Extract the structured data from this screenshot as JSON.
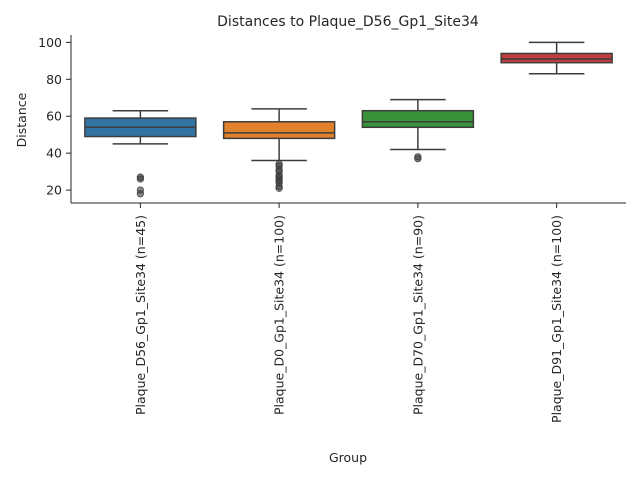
{
  "chart_data": {
    "type": "box",
    "title": "Distances to Plaque_D56_Gp1_Site34",
    "xlabel": "Group",
    "ylabel": "Distance",
    "ylim": [
      13,
      104
    ],
    "yticks": [
      20,
      40,
      60,
      80,
      100
    ],
    "grid": false,
    "categories": [
      "Plaque_D56_Gp1_Site34 (n=45)",
      "Plaque_D0_Gp1_Site34 (n=100)",
      "Plaque_D70_Gp1_Site34 (n=90)",
      "Plaque_D91_Gp1_Site34 (n=100)"
    ],
    "boxes": [
      {
        "category": "Plaque_D56_Gp1_Site34 (n=45)",
        "color": "#3274a1",
        "whisker_low": 45,
        "q1": 49,
        "median": 54,
        "q3": 59,
        "whisker_high": 63,
        "outliers": [
          27,
          26,
          20,
          18
        ]
      },
      {
        "category": "Plaque_D0_Gp1_Site34 (n=100)",
        "color": "#e1812c",
        "whisker_low": 36,
        "q1": 48,
        "median": 51,
        "q3": 57,
        "whisker_high": 64,
        "outliers": [
          34,
          33,
          31,
          30,
          28,
          27,
          26,
          25,
          24,
          22,
          21
        ]
      },
      {
        "category": "Plaque_D70_Gp1_Site34 (n=90)",
        "color": "#3a923a",
        "whisker_low": 42,
        "q1": 54,
        "median": 57,
        "q3": 63,
        "whisker_high": 69,
        "outliers": [
          38,
          37
        ]
      },
      {
        "category": "Plaque_D91_Gp1_Site34 (n=100)",
        "color": "#c03d3e",
        "whisker_low": 83,
        "q1": 89,
        "median": 91,
        "q3": 94,
        "whisker_high": 100,
        "outliers": []
      }
    ]
  }
}
